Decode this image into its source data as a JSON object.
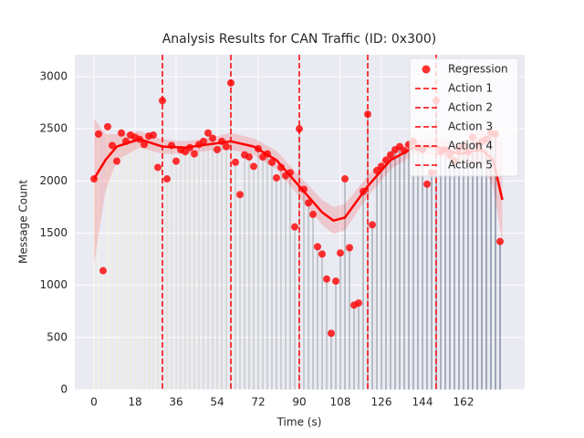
{
  "chart_data": {
    "type": "regression",
    "title": "Analysis Results for CAN Traffic (ID: 0x300)",
    "x_label": "Time (s)",
    "y_label": "Message Count",
    "x": [
      0,
      2,
      4,
      6,
      8,
      10,
      12,
      14,
      16,
      18,
      20,
      22,
      24,
      26,
      28,
      30,
      32,
      34,
      36,
      38,
      40,
      42,
      44,
      46,
      48,
      50,
      52,
      54,
      56,
      58,
      60,
      62,
      64,
      66,
      68,
      70,
      72,
      74,
      76,
      78,
      80,
      82,
      84,
      86,
      88,
      90,
      92,
      94,
      96,
      98,
      100,
      102,
      104,
      106,
      108,
      110,
      112,
      114,
      116,
      118,
      120,
      122,
      124,
      126,
      128,
      130,
      132,
      134,
      136,
      138,
      140,
      142,
      144,
      146,
      148,
      150,
      152,
      154,
      156,
      158,
      160,
      162,
      164,
      166,
      168,
      170,
      172,
      174,
      176,
      178
    ],
    "series": [
      {
        "name": "Regression",
        "color": "#ff0000",
        "values": [
          2020,
          2450,
          1140,
          2520,
          2340,
          2190,
          2460,
          2380,
          2440,
          2420,
          2400,
          2350,
          2430,
          2440,
          2130,
          2770,
          2020,
          2340,
          2190,
          2300,
          2280,
          2320,
          2260,
          2350,
          2380,
          2460,
          2410,
          2300,
          2380,
          2330,
          2940,
          2180,
          1870,
          2250,
          2230,
          2140,
          2310,
          2230,
          2260,
          2180,
          2030,
          2130,
          2050,
          2080,
          1560,
          2500,
          1920,
          1790,
          1680,
          1370,
          1300,
          1060,
          540,
          1040,
          1310,
          2020,
          1360,
          810,
          830,
          1900,
          2640,
          1580,
          2100,
          2140,
          2200,
          2250,
          2300,
          2330,
          2290,
          2350,
          2380,
          2320,
          2300,
          1970,
          2080,
          2770,
          2280,
          2300,
          2250,
          2190,
          2310,
          2330,
          2280,
          2420,
          2350,
          2380,
          2400,
          2460,
          2450,
          1420
        ]
      }
    ],
    "bar_colors": [
      "#fffbd8",
      "#3b4f6e"
    ],
    "fit": {
      "color": "#ff0000",
      "x": [
        0,
        5,
        10,
        20,
        30,
        40,
        50,
        60,
        70,
        80,
        90,
        100,
        105,
        110,
        120,
        130,
        140,
        150,
        160,
        170,
        175,
        179
      ],
      "values": [
        2020,
        2200,
        2330,
        2400,
        2330,
        2320,
        2350,
        2380,
        2330,
        2200,
        1950,
        1700,
        1620,
        1650,
        1950,
        2200,
        2320,
        2330,
        2260,
        2300,
        2200,
        1820
      ],
      "lower": [
        1200,
        1900,
        2200,
        2320,
        2260,
        2260,
        2290,
        2300,
        2250,
        2110,
        1850,
        1580,
        1490,
        1530,
        1850,
        2110,
        2250,
        2250,
        2150,
        2150,
        1950,
        1400
      ],
      "upper": [
        2600,
        2450,
        2450,
        2480,
        2400,
        2380,
        2410,
        2460,
        2410,
        2290,
        2050,
        1820,
        1750,
        1780,
        2050,
        2290,
        2390,
        2410,
        2370,
        2480,
        2470,
        2350
      ]
    },
    "vlines": [
      {
        "name": "Action 1",
        "x": 30,
        "color": "#ff0000"
      },
      {
        "name": "Action 2",
        "x": 60,
        "color": "#ff0000"
      },
      {
        "name": "Action 3",
        "x": 90,
        "color": "#ff0000"
      },
      {
        "name": "Action 4",
        "x": 120,
        "color": "#ff0000"
      },
      {
        "name": "Action 5",
        "x": 150,
        "color": "#ff0000"
      }
    ],
    "xlim": [
      -8.4,
      188.8
    ],
    "ylim": [
      0,
      3210
    ],
    "xticks": [
      0,
      18,
      36,
      54,
      72,
      90,
      108,
      126,
      144,
      162
    ],
    "yticks": [
      0,
      500,
      1000,
      1500,
      2000,
      2500,
      3000
    ],
    "grid": true,
    "legend": "upper right"
  }
}
